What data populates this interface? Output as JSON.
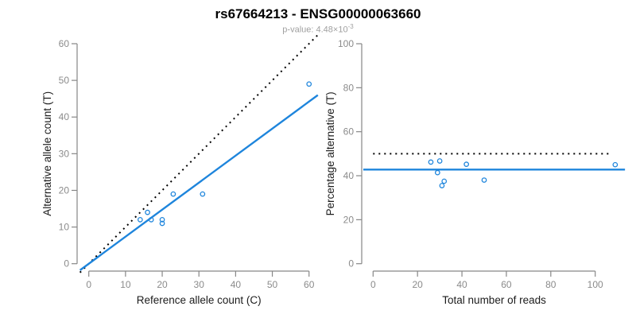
{
  "figure": {
    "title": "rs67664213 - ENSG00000063660",
    "subtitle_prefix": "p-value: 4.48×10",
    "subtitle_exponent": "-3",
    "colors": {
      "accent_blue": "#1E85DC",
      "dotted_black": "#000000",
      "axis_gray": "#878787",
      "tick_label_gray": "#8B8B8B",
      "axis_title_color": "#1C1C1C",
      "subtitle_gray": "#A0A0A0"
    }
  },
  "chart_data": [
    {
      "type": "scatter",
      "panel": "left",
      "xlabel": "Reference allele count (C)",
      "ylabel": "Alternative allele count (T)",
      "xlim": [
        -2.4,
        62.4
      ],
      "ylim": [
        -2.4,
        62.4
      ],
      "xticks": [
        0,
        10,
        20,
        30,
        40,
        50,
        60
      ],
      "yticks": [
        0,
        10,
        20,
        30,
        40,
        50,
        60
      ],
      "grid": false,
      "legend": "none",
      "points": [
        [
          14,
          12
        ],
        [
          16,
          14
        ],
        [
          17,
          12
        ],
        [
          20,
          12
        ],
        [
          20,
          11
        ],
        [
          23,
          19
        ],
        [
          31,
          19
        ],
        [
          60,
          49
        ]
      ],
      "lines": [
        {
          "name": "identity-line",
          "kind": "abline",
          "intercept": 0,
          "slope": 1,
          "style": "dotted",
          "color": "#000000"
        },
        {
          "name": "fit-line",
          "kind": "abline",
          "intercept": 0,
          "slope": 0.737,
          "style": "solid",
          "color": "#1E85DC"
        }
      ]
    },
    {
      "type": "scatter",
      "panel": "right",
      "xlabel": "Total number of reads",
      "ylabel": "Percentage alternative (T)",
      "xlim": [
        -4.4,
        113.4
      ],
      "ylim": [
        -4,
        104
      ],
      "xticks": [
        0,
        20,
        40,
        60,
        80,
        100
      ],
      "yticks": [
        0,
        20,
        40,
        60,
        80,
        100
      ],
      "grid": false,
      "legend": "none",
      "points": [
        [
          26,
          46.2
        ],
        [
          30,
          46.7
        ],
        [
          29,
          41.4
        ],
        [
          32,
          37.5
        ],
        [
          31,
          35.5
        ],
        [
          42,
          45.2
        ],
        [
          50,
          38
        ],
        [
          109,
          45
        ]
      ],
      "lines": [
        {
          "name": "null-50pct-line",
          "kind": "hline",
          "y": 50,
          "style": "dotted",
          "color": "#000000",
          "x_from": 0,
          "x_to": 107
        },
        {
          "name": "fit-line",
          "kind": "hline",
          "y": 42.8,
          "style": "solid",
          "color": "#1E85DC"
        }
      ]
    }
  ]
}
